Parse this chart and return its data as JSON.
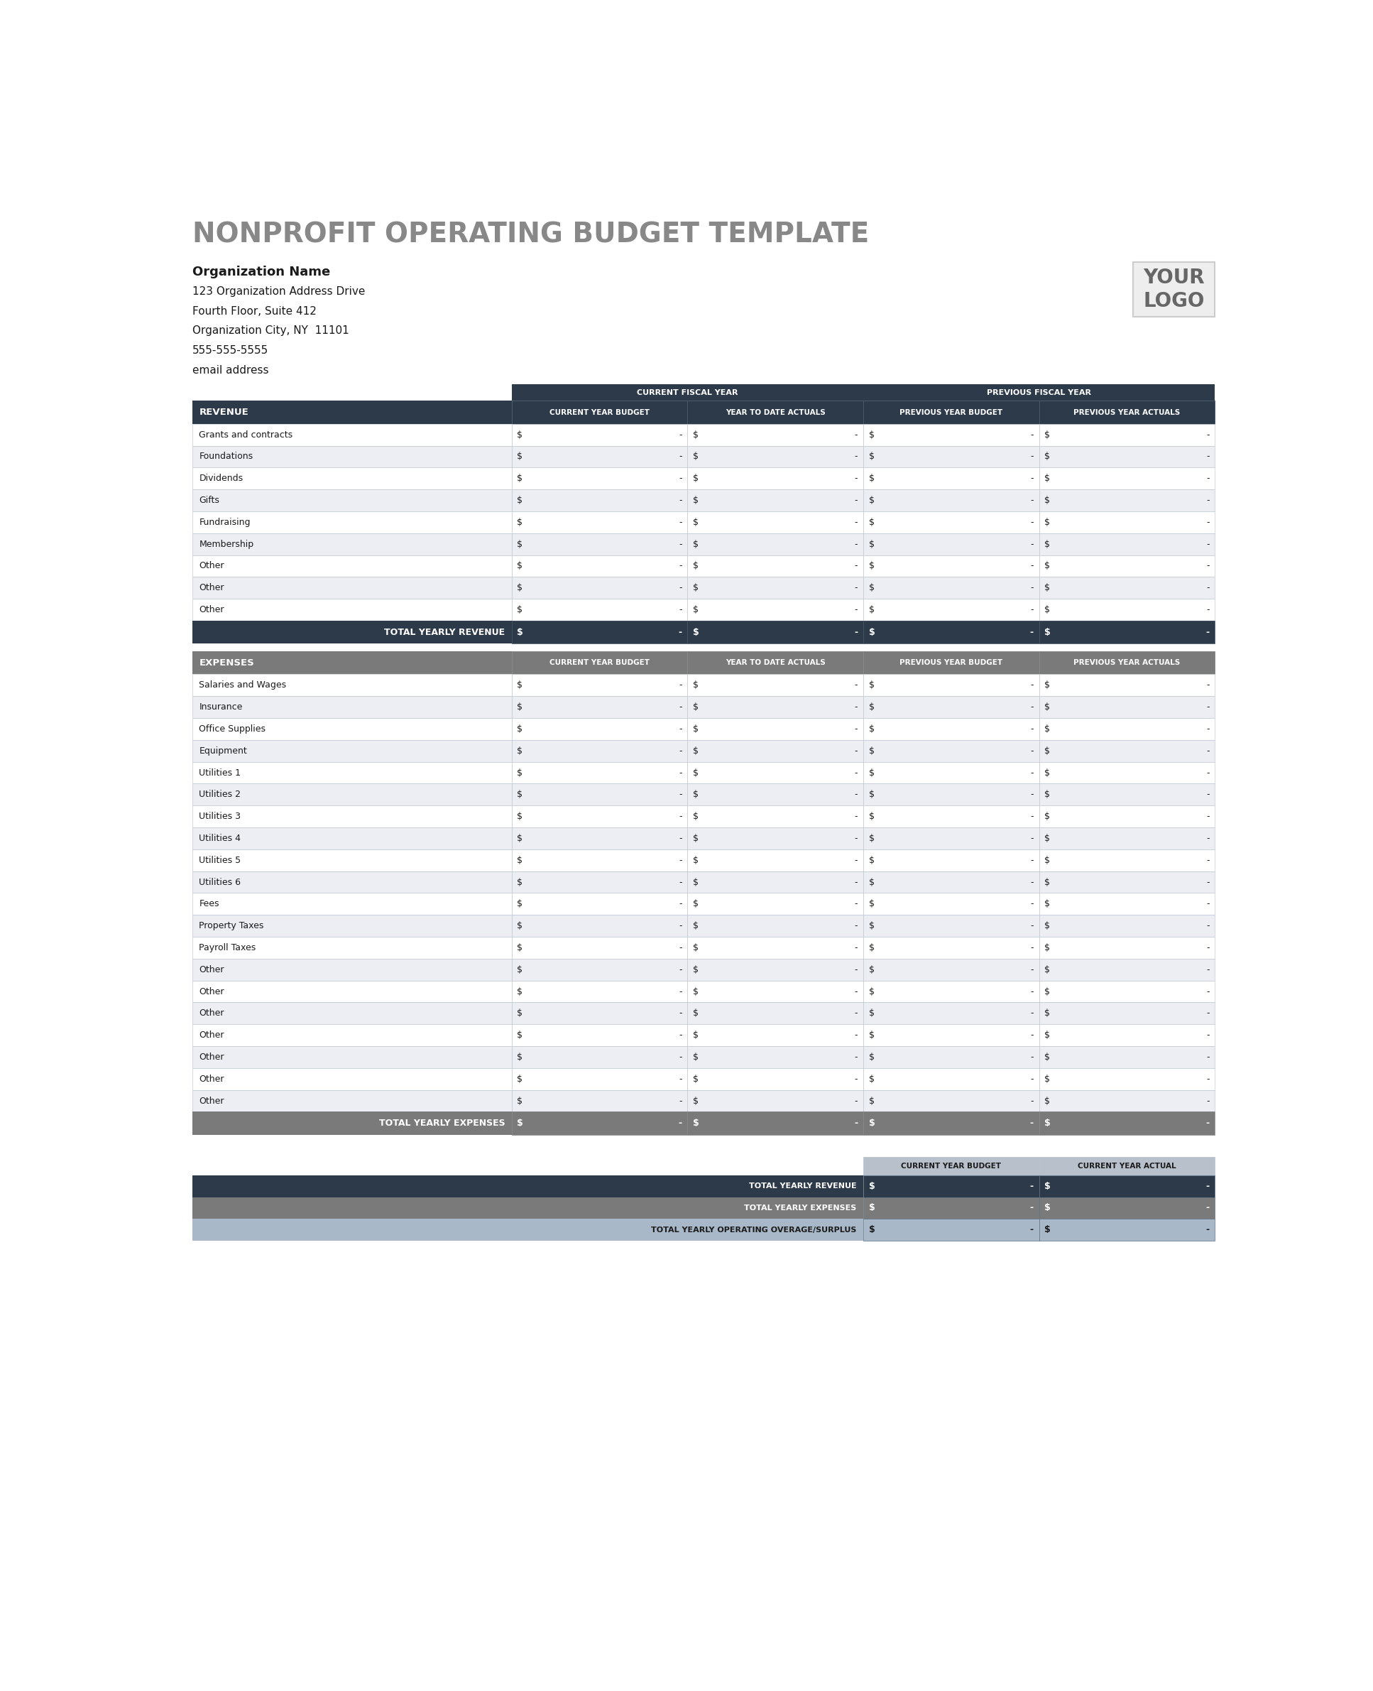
{
  "title": "NONPROFIT OPERATING BUDGET TEMPLATE",
  "org_name": "Organization Name",
  "address1": "123 Organization Address Drive",
  "address2": "Fourth Floor, Suite 412",
  "address3": "Organization City, NY  11101",
  "phone": "555-555-5555",
  "email": "email address",
  "logo_text": "YOUR\nLOGO",
  "col_headers": [
    "CURRENT YEAR BUDGET",
    "YEAR TO DATE ACTUALS",
    "PREVIOUS YEAR BUDGET",
    "PREVIOUS YEAR ACTUALS"
  ],
  "fiscal_year_labels": [
    "CURRENT FISCAL YEAR",
    "PREVIOUS FISCAL YEAR"
  ],
  "revenue_rows": [
    "Grants and contracts",
    "Foundations",
    "Dividends",
    "Gifts",
    "Fundraising",
    "Membership",
    "Other",
    "Other",
    "Other"
  ],
  "expense_rows": [
    "Salaries and Wages",
    "Insurance",
    "Office Supplies",
    "Equipment",
    "Utilities 1",
    "Utilities 2",
    "Utilities 3",
    "Utilities 4",
    "Utilities 5",
    "Utilities 6",
    "Fees",
    "Property Taxes",
    "Payroll Taxes",
    "Other",
    "Other",
    "Other",
    "Other",
    "Other",
    "Other",
    "Other"
  ],
  "total_revenue_label": "TOTAL YEARLY REVENUE",
  "total_expenses_label": "TOTAL YEARLY EXPENSES",
  "total_surplus_label": "TOTAL YEARLY OPERATING OVERAGE/SURPLUS",
  "summary_col_headers": [
    "CURRENT YEAR BUDGET",
    "CURRENT YEAR ACTUAL"
  ],
  "dark_header_bg": "#2d3a4a",
  "gray_header_bg": "#7a7a7a",
  "title_color": "#888888",
  "white": "#ffffff",
  "light_gray_row": "#eceef4",
  "medium_gray": "#a0aab8",
  "summary_surplus_color": "#a8b8c8",
  "text_dark": "#1a1a1a",
  "text_white": "#ffffff",
  "border_color": "#b8c0cc",
  "logo_border": "#cccccc",
  "logo_bg": "#eeeeee"
}
